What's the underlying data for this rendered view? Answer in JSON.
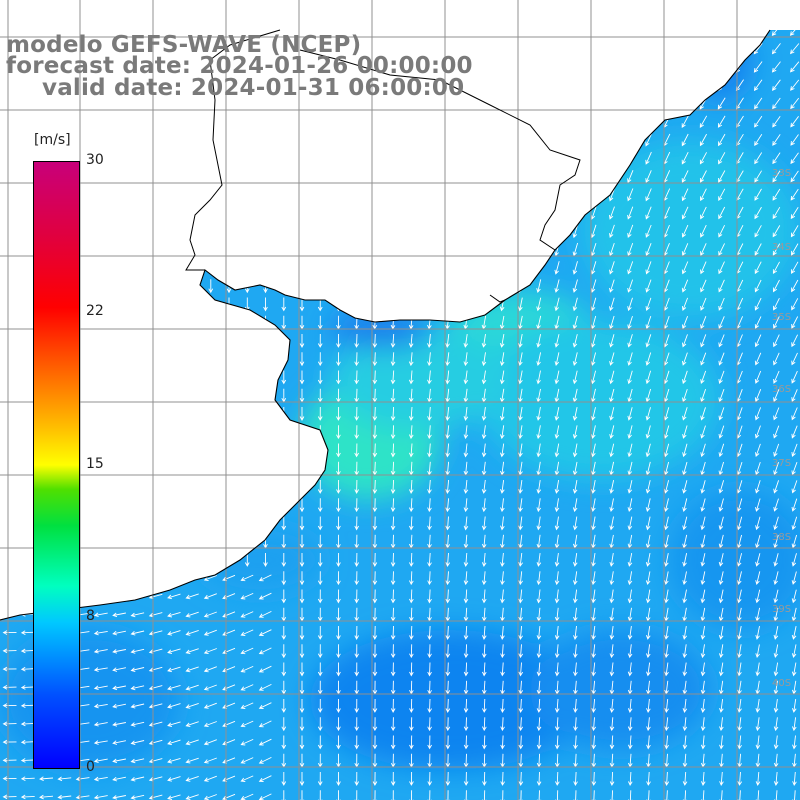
{
  "header": {
    "model_line": "modelo GEFS-WAVE (NCEP)",
    "forecast_line": "forecast date: 2024-01-26 00:00:00",
    "valid_line": "valid date: 2024-01-31 06:00:00"
  },
  "colorbar": {
    "unit": "[m/s]",
    "ticks": [
      "30",
      "22",
      "15",
      "8",
      "0"
    ],
    "tick_values": [
      30,
      22,
      15,
      8,
      0
    ],
    "range": [
      0,
      30
    ]
  },
  "map": {
    "land_color": "#ffffff",
    "grid_color": "#909090",
    "coast_color": "#000000",
    "arrow_color": "#ffffff",
    "grid_on": true
  }
}
